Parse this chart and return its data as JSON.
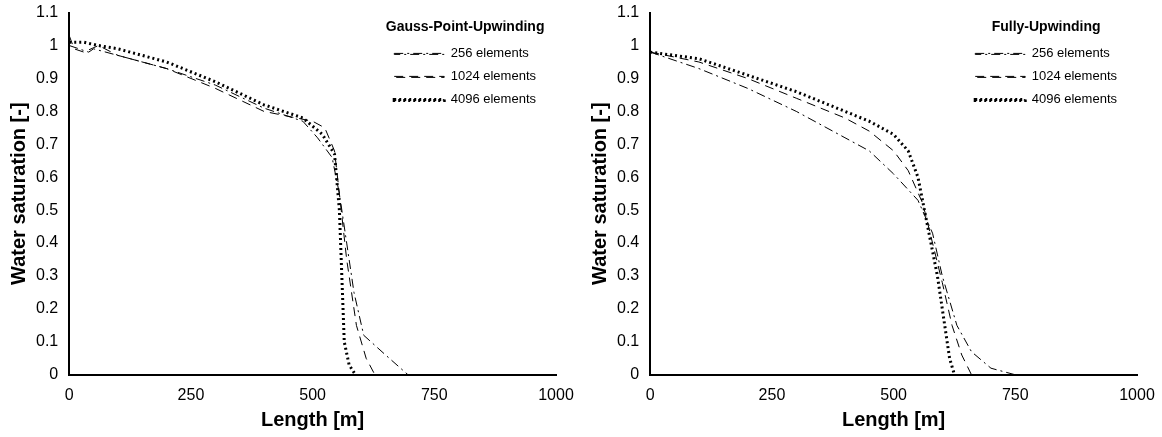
{
  "chart_data": [
    {
      "type": "line",
      "legend_title": "Gauss-Point-Upwinding",
      "xlabel": "Length [m]",
      "ylabel": "Water saturation [-]",
      "xlim": [
        0,
        1000
      ],
      "xticks": [
        0,
        250,
        500,
        750,
        1000
      ],
      "ylim": [
        0,
        1.1
      ],
      "yticks": [
        0,
        0.1,
        0.2,
        0.3,
        0.4,
        0.5,
        0.6,
        0.7,
        0.8,
        0.9,
        1,
        1.1
      ],
      "grid": false,
      "legend": "top right",
      "marker": "none",
      "series": [
        {
          "name": "256 elements",
          "color": "#000000",
          "line_style": "dashdot",
          "x": [
            0,
            20,
            40,
            50,
            100,
            200,
            300,
            400,
            480,
            510,
            540,
            555,
            570,
            585,
            605,
            650,
            696
          ],
          "values": [
            1.0,
            0.99,
            0.98,
            0.99,
            0.97,
            0.93,
            0.88,
            0.81,
            0.77,
            0.72,
            0.66,
            0.55,
            0.4,
            0.25,
            0.12,
            0.06,
            0
          ]
        },
        {
          "name": "1024 elements",
          "color": "#000000",
          "line_style": "dashed",
          "x": [
            0,
            10,
            30,
            60,
            100,
            200,
            300,
            400,
            500,
            525,
            545,
            555,
            570,
            590,
            610,
            628
          ],
          "values": [
            1.03,
            0.99,
            0.98,
            1.0,
            0.97,
            0.93,
            0.87,
            0.8,
            0.77,
            0.75,
            0.68,
            0.55,
            0.35,
            0.15,
            0.05,
            0
          ]
        },
        {
          "name": "4096 elements",
          "color": "#000000",
          "line_style": "dotted",
          "x": [
            0,
            30,
            60,
            100,
            200,
            300,
            400,
            480,
            520,
            545,
            555,
            560,
            565,
            575,
            588
          ],
          "values": [
            1.01,
            1.01,
            1.0,
            0.99,
            0.95,
            0.89,
            0.82,
            0.78,
            0.73,
            0.67,
            0.5,
            0.3,
            0.1,
            0.03,
            0
          ]
        }
      ]
    },
    {
      "type": "line",
      "legend_title": "Fully-Upwinding",
      "xlabel": "Length [m]",
      "ylabel": "Water saturation [-]",
      "xlim": [
        0,
        1000
      ],
      "xticks": [
        0,
        250,
        500,
        750,
        1000
      ],
      "ylim": [
        0,
        1.1
      ],
      "yticks": [
        0,
        0.1,
        0.2,
        0.3,
        0.4,
        0.5,
        0.6,
        0.7,
        0.8,
        0.9,
        1,
        1.1
      ],
      "grid": false,
      "legend": "top right",
      "marker": "none",
      "series": [
        {
          "name": "256 elements",
          "color": "#000000",
          "line_style": "dashdot",
          "x": [
            0,
            100,
            200,
            300,
            400,
            450,
            500,
            550,
            580,
            600,
            630,
            660,
            700,
            750
          ],
          "values": [
            0.98,
            0.93,
            0.87,
            0.8,
            0.72,
            0.68,
            0.61,
            0.53,
            0.43,
            0.3,
            0.15,
            0.07,
            0.02,
            0
          ]
        },
        {
          "name": "1024 elements",
          "color": "#000000",
          "line_style": "dashed",
          "x": [
            0,
            100,
            200,
            300,
            400,
            450,
            500,
            530,
            560,
            580,
            600,
            620,
            640,
            660
          ],
          "values": [
            0.98,
            0.95,
            0.9,
            0.84,
            0.78,
            0.74,
            0.68,
            0.62,
            0.52,
            0.4,
            0.28,
            0.15,
            0.06,
            0
          ]
        },
        {
          "name": "4096 elements",
          "color": "#000000",
          "line_style": "dotted",
          "x": [
            0,
            100,
            200,
            300,
            400,
            450,
            500,
            530,
            550,
            570,
            590,
            605,
            615,
            625
          ],
          "values": [
            0.98,
            0.96,
            0.91,
            0.86,
            0.8,
            0.77,
            0.73,
            0.68,
            0.6,
            0.45,
            0.3,
            0.15,
            0.05,
            0
          ]
        }
      ]
    }
  ]
}
